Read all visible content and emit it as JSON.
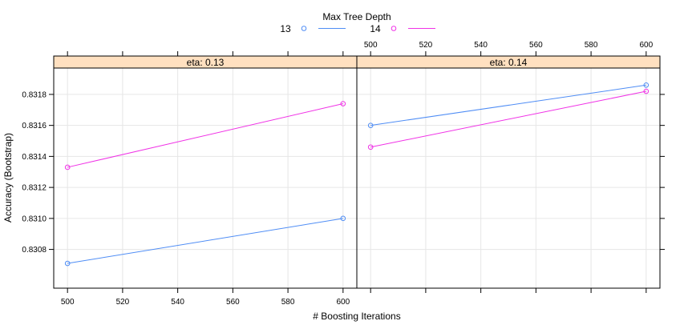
{
  "chart_data": {
    "type": "line",
    "title": "",
    "xlabel": "# Boosting Iterations",
    "ylabel": "Accuracy (Bootstrap)",
    "legend": {
      "title": "Max Tree Depth",
      "position": "top",
      "entries": [
        {
          "label": "13",
          "color": "#4f8df5"
        },
        {
          "label": "14",
          "color": "#f032e6"
        }
      ]
    },
    "xlim": [
      495,
      605
    ],
    "ylim": [
      0.83055,
      0.83197
    ],
    "x_ticks": [
      500,
      520,
      540,
      560,
      580,
      600
    ],
    "y_ticks": [
      0.8308,
      0.831,
      0.8312,
      0.8314,
      0.8316,
      0.8318
    ],
    "y_tick_labels": [
      "0.8308",
      "0.8310",
      "0.8312",
      "0.8314",
      "0.8316",
      "0.8318"
    ],
    "grid": true,
    "strip_color": "#ffe0c0",
    "panels": [
      {
        "strip": "eta: 0.13",
        "series": [
          {
            "name": "13",
            "color": "#4f8df5",
            "x": [
              500,
              600
            ],
            "y": [
              0.83071,
              0.831
            ]
          },
          {
            "name": "14",
            "color": "#f032e6",
            "x": [
              500,
              600
            ],
            "y": [
              0.83133,
              0.83174
            ]
          }
        ]
      },
      {
        "strip": "eta: 0.14",
        "series": [
          {
            "name": "13",
            "color": "#4f8df5",
            "x": [
              500,
              600
            ],
            "y": [
              0.8316,
              0.83186
            ]
          },
          {
            "name": "14",
            "color": "#f032e6",
            "x": [
              500,
              600
            ],
            "y": [
              0.83146,
              0.83182
            ]
          }
        ]
      }
    ]
  }
}
